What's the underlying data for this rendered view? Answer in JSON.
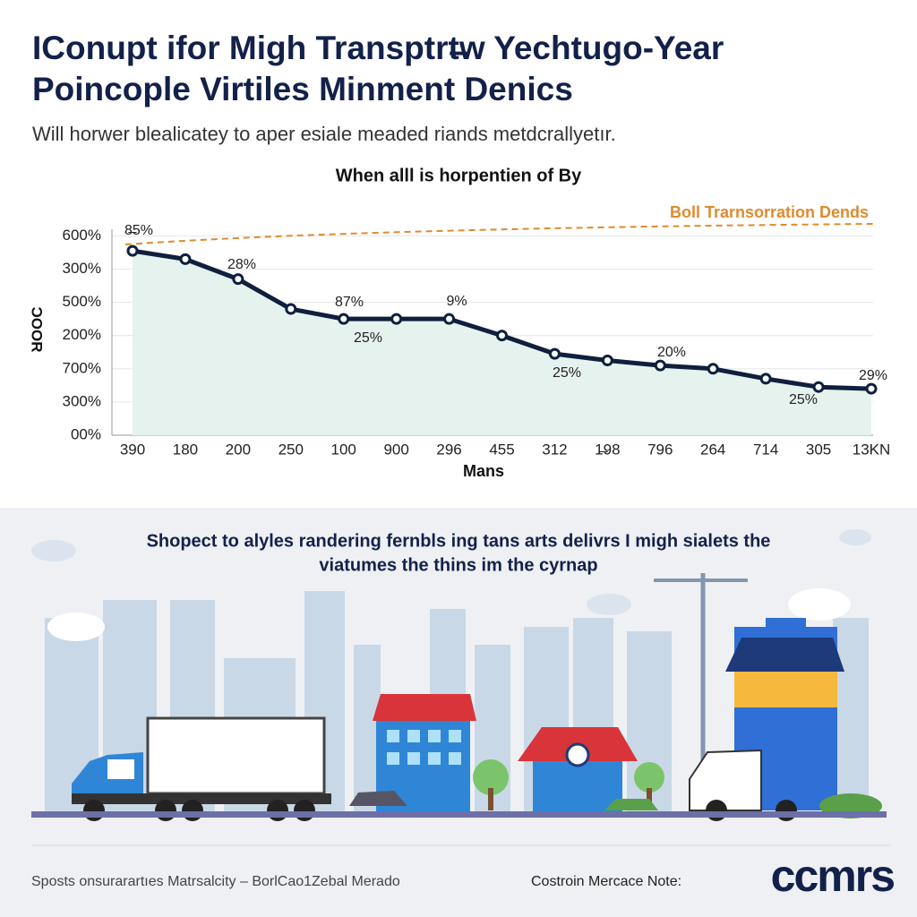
{
  "header": {
    "title_lines": [
      "IConupt ifor Migh Transptrt̶w Yechtugo-Year",
      "Poincople Virtiles Minment Denics"
    ],
    "subtitle": "Will horwer blealicatey to aper esiale meaded riands metdcrallyetır."
  },
  "chart_data": {
    "type": "line",
    "title": "When alll is horpentien of By",
    "x_label": "Mans",
    "y_label": "ƆOOR",
    "categories": [
      "390",
      "180",
      "200",
      "250",
      "100",
      "900",
      "296",
      "455",
      "312",
      "1̶98",
      "796",
      "264",
      "714",
      "305",
      "13KN"
    ],
    "series": [
      {
        "name": "series",
        "color": "#0f1f3d",
        "values": [
          5.55,
          5.3,
          4.7,
          3.8,
          3.5,
          3.5,
          3.5,
          3.0,
          2.45,
          2.25,
          2.1,
          2.0,
          1.7,
          1.45,
          1.4
        ]
      }
    ],
    "ylim": [
      0,
      6.2
    ],
    "yticks": [
      {
        "value": 0,
        "label": "00%"
      },
      {
        "value": 1,
        "label": "300%"
      },
      {
        "value": 2,
        "label": "700%"
      },
      {
        "value": 3,
        "label": "200%"
      },
      {
        "value": 4,
        "label": "500%"
      },
      {
        "value": 5,
        "label": "300%"
      },
      {
        "value": 6,
        "label": "600%"
      }
    ],
    "grid": true,
    "area_color": "#e6f2ee",
    "trend_label": "Boll Trarnsorration Dends",
    "trend_color": "#e08a2e",
    "annotations": [
      "8̶5%",
      "28%",
      "87%",
      "25%",
      "9%",
      "25%",
      "20%",
      "25%",
      "29%"
    ]
  },
  "banner": {
    "lines": [
      "Shopect to alyles randering fernbls ing tans arts delivrs I migh sialets the",
      "viatumes the thins im the cyrnap"
    ]
  },
  "footer": {
    "left": "Sposts onsurarartıes Matrsalcity – BorlCao1Zebal Merado",
    "middle": "Costroin Mercace Note:",
    "logo": "ccmrs"
  }
}
